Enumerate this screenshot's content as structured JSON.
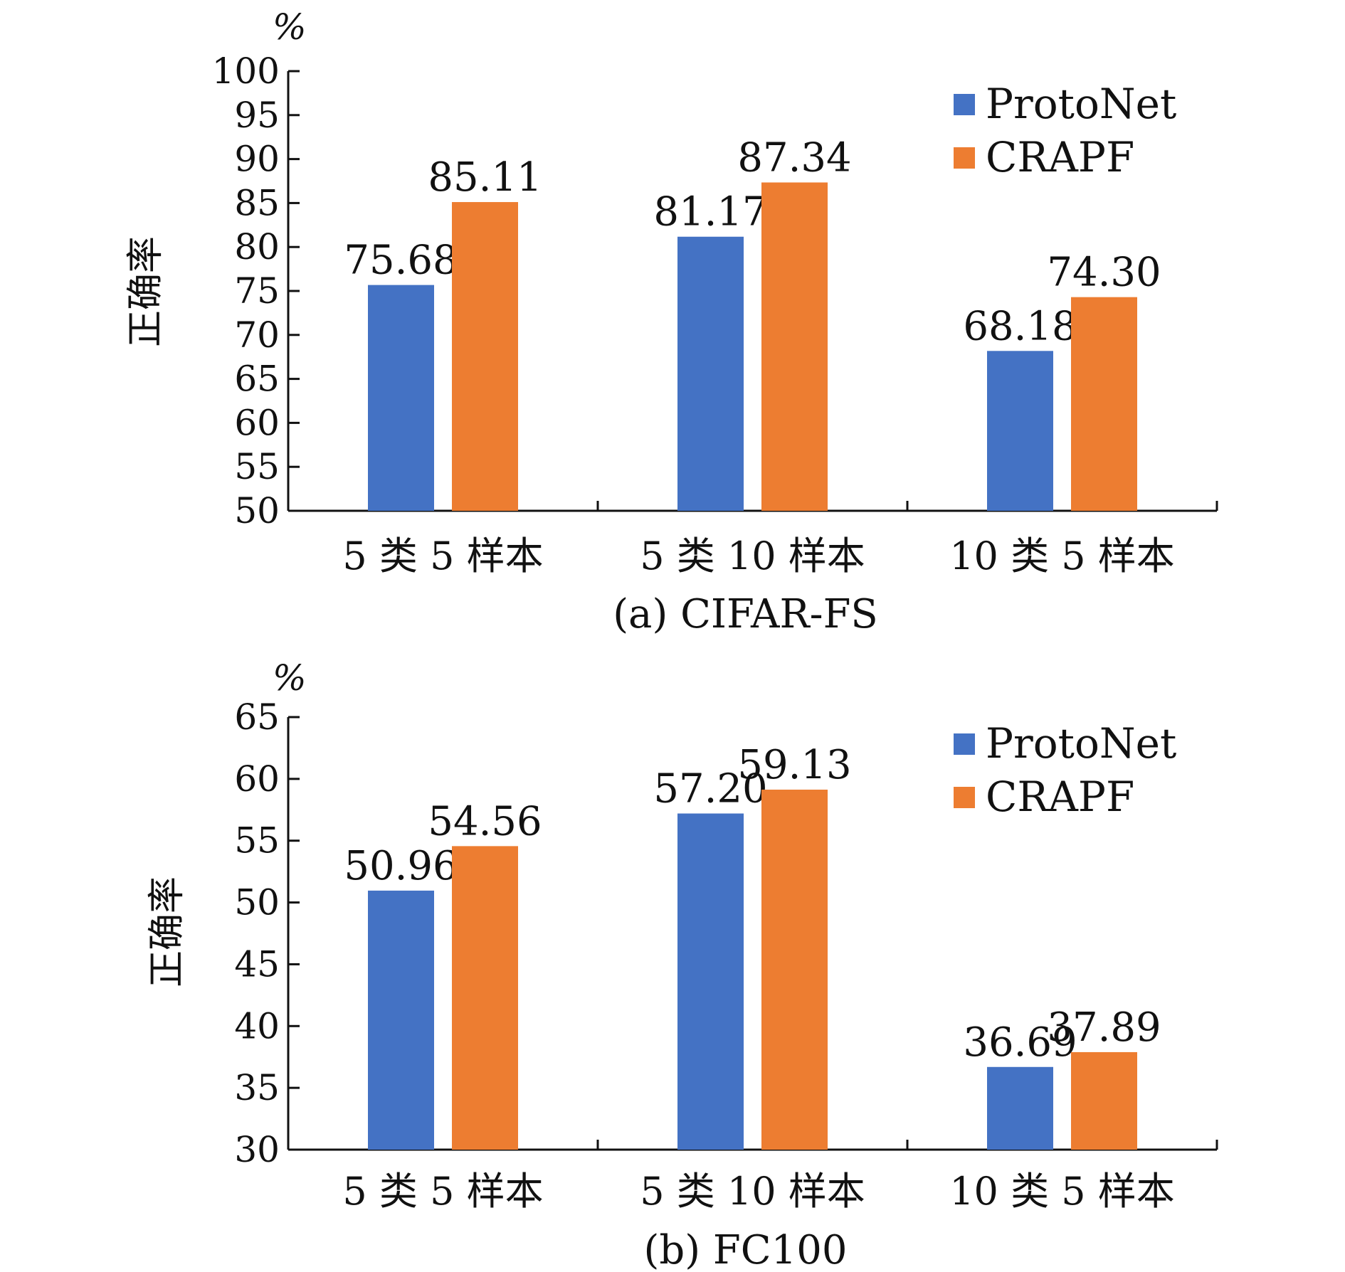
{
  "colors": {
    "ProtoNet": "#4472c4",
    "CRAPF": "#ed7d31"
  },
  "chart_data": [
    {
      "type": "bar",
      "caption": "(a) CIFAR-FS",
      "unit": "%",
      "ylabel": "正确率",
      "ylim": [
        50,
        100
      ],
      "yticks": [
        "50",
        "55",
        "60",
        "65",
        "70",
        "75",
        "80",
        "85",
        "90",
        "95",
        "100"
      ],
      "categories": [
        "5 类 5 样本",
        "5 类 10 样本",
        "10 类 5 样本"
      ],
      "series": [
        {
          "name": "ProtoNet",
          "values": [
            75.68,
            81.17,
            68.18
          ],
          "labels": [
            "75.68",
            "81.17",
            "68.18"
          ]
        },
        {
          "name": "CRAPF",
          "values": [
            85.11,
            87.34,
            74.3
          ],
          "labels": [
            "85.11",
            "87.34",
            "74.30"
          ]
        }
      ],
      "legend": "top-right",
      "grid": false
    },
    {
      "type": "bar",
      "caption": "(b) FC100",
      "unit": "%",
      "ylabel": "正确率",
      "ylim": [
        30,
        65
      ],
      "yticks": [
        "30",
        "35",
        "40",
        "45",
        "50",
        "55",
        "60",
        "65"
      ],
      "categories": [
        "5 类 5 样本",
        "5 类 10 样本",
        "10 类 5 样本"
      ],
      "series": [
        {
          "name": "ProtoNet",
          "values": [
            50.96,
            57.2,
            36.69
          ],
          "labels": [
            "50.96",
            "57.20",
            "36.69"
          ]
        },
        {
          "name": "CRAPF",
          "values": [
            54.56,
            59.13,
            37.89
          ],
          "labels": [
            "54.56",
            "59.13",
            "37.89"
          ]
        }
      ],
      "legend": "top-right",
      "grid": false
    }
  ]
}
